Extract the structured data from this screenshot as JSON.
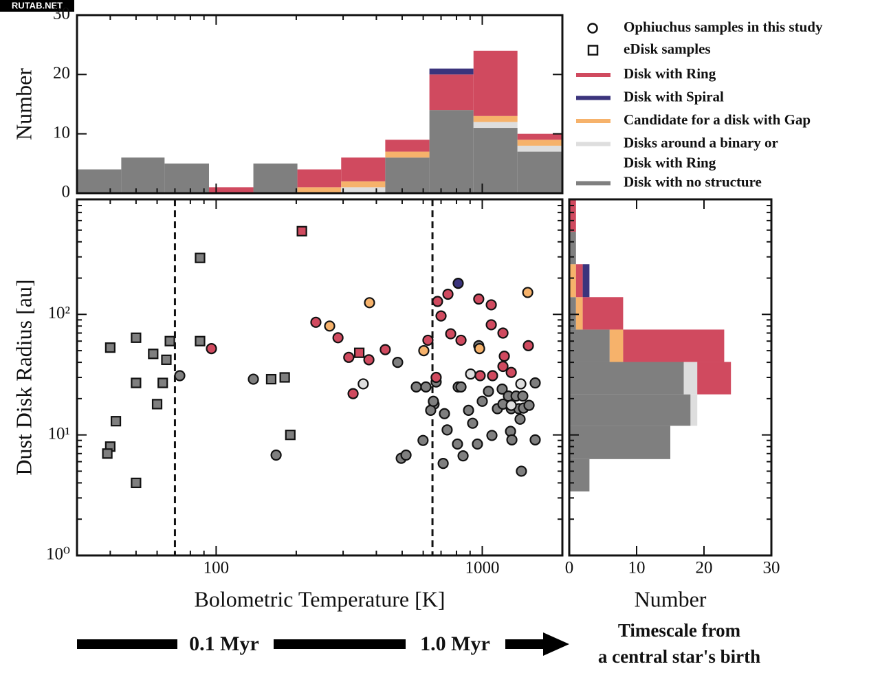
{
  "watermark": "RUTAB.NET",
  "chart_data": [
    {
      "type": "histogram",
      "orientation": "vertical",
      "ylabel": "Number",
      "xscale": "log",
      "xlim": [
        30,
        2000
      ],
      "xticks": [
        100,
        1000
      ],
      "xticks_minor": [
        40,
        50,
        60,
        70,
        80,
        90,
        200,
        300,
        400,
        500,
        600,
        700,
        800,
        900
      ],
      "ylim": [
        0,
        30
      ],
      "yticks": [
        0,
        10,
        20,
        30
      ],
      "bins": [
        30,
        44,
        64,
        94,
        138,
        202,
        295,
        432,
        633,
        927,
        1356,
        1985
      ],
      "series": [
        {
          "name": "Disk with no structure",
          "color": "#7f7f7f",
          "values": [
            4,
            6,
            5,
            0,
            5,
            0,
            0,
            6,
            14,
            11,
            7
          ]
        },
        {
          "name": "Disks around a binary or Disk with Ring",
          "color": "#dedede",
          "values": [
            0,
            0,
            0,
            0,
            0,
            0,
            1,
            0,
            0,
            1,
            1
          ]
        },
        {
          "name": "Candidate for a disk with Gap",
          "color": "#f6b26b",
          "values": [
            0,
            0,
            0,
            0,
            0,
            1,
            1,
            1,
            0,
            1,
            1
          ]
        },
        {
          "name": "Disk with Ring",
          "color": "#d04a5f",
          "values": [
            0,
            0,
            0,
            1,
            0,
            3,
            4,
            2,
            6,
            11,
            1
          ]
        },
        {
          "name": "Disk with Spiral",
          "color": "#3b347c",
          "values": [
            0,
            0,
            0,
            0,
            0,
            0,
            0,
            0,
            1,
            0,
            0
          ]
        }
      ]
    },
    {
      "type": "scatter",
      "xlabel": "Bolometric Temperature [K]",
      "ylabel": "Dust Disk Radius [au]",
      "xscale": "log",
      "yscale": "log",
      "xlim": [
        30,
        2000
      ],
      "ylim": [
        1,
        900
      ],
      "xticks": [
        100,
        1000
      ],
      "xticks_minor": [
        40,
        50,
        60,
        70,
        80,
        90,
        200,
        300,
        400,
        500,
        600,
        700,
        800,
        900
      ],
      "yticks": [
        {
          "value": 1,
          "label": "10⁰"
        },
        {
          "value": 10,
          "label": "10¹"
        },
        {
          "value": 100,
          "label": "10²"
        }
      ],
      "yticks_minor": [
        2,
        3,
        4,
        5,
        6,
        7,
        8,
        9,
        20,
        30,
        40,
        50,
        60,
        70,
        80,
        90,
        200,
        300,
        400,
        500,
        600,
        700,
        800
      ],
      "vlines": [
        70,
        650
      ],
      "legend": {
        "markers": [
          {
            "label": "Ophiuchus samples in this study",
            "marker": "circle"
          },
          {
            "label": "eDisk samples",
            "marker": "square"
          }
        ],
        "classes": [
          {
            "label": [
              "Disk with Ring"
            ],
            "color": "#d04a5f"
          },
          {
            "label": [
              "Disk with Spiral"
            ],
            "color": "#3b347c"
          },
          {
            "label": [
              "Candidate for a disk with Gap"
            ],
            "color": "#f6b26b"
          },
          {
            "label": [
              "Disks around a binary or",
              "Disk with Ring"
            ],
            "color": "#dedede"
          },
          {
            "label": [
              "Disk with no structure"
            ],
            "color": "#7f7f7f"
          }
        ]
      },
      "series": [
        {
          "marker": "square",
          "color": "#7f7f7f",
          "x": [
            40,
            50,
            58,
            67,
            65,
            50,
            63,
            60,
            42,
            40,
            39,
            50,
            87,
            87,
            161,
            181,
            190
          ],
          "values": [
            53,
            64,
            47,
            60,
            42,
            27,
            27,
            18,
            13,
            8,
            7,
            4,
            294,
            60,
            29,
            30,
            10
          ]
        },
        {
          "marker": "square",
          "color": "#d04a5f",
          "x": [
            210,
            345
          ],
          "values": [
            490,
            48
          ]
        },
        {
          "marker": "circle",
          "color": "#7f7f7f",
          "x": [
            73,
            138,
            168,
            481,
            496,
            517,
            565,
            614,
            671,
            659,
            640,
            655,
            599,
            721,
            738,
            713,
            812,
            832,
            807,
            847,
            888,
            920,
            959,
            1000,
            970,
            1055,
            1087,
            1140,
            1188,
            1196,
            1254,
            1277,
            1292,
            1285,
            1340,
            1387,
            1371,
            1429,
            1403,
            1499,
            1581,
            1581,
            1420
          ],
          "values": [
            31,
            29,
            6.8,
            40,
            6.4,
            6.8,
            25,
            25,
            27.5,
            18,
            16,
            19,
            9,
            15,
            11,
            5.8,
            25,
            25,
            8.4,
            6.7,
            16,
            12.5,
            8.4,
            19,
            55,
            23,
            9.9,
            16.5,
            24,
            18,
            21,
            10.7,
            9.1,
            16.5,
            21,
            13.5,
            16.5,
            16.7,
            5,
            17.6,
            27,
            9.1,
            21
          ]
        },
        {
          "marker": "circle",
          "color": "#dedede",
          "x": [
            357,
            904,
            1396,
            1285
          ],
          "values": [
            26.5,
            32,
            26.5,
            17.6
          ]
        },
        {
          "marker": "circle",
          "color": "#f6b26b",
          "x": [
            377,
            267,
            603,
            977,
            1482
          ],
          "values": [
            125,
            80,
            50,
            52,
            152
          ]
        },
        {
          "marker": "circle",
          "color": "#3b347c",
          "x": [
            812
          ],
          "values": [
            181
          ]
        },
        {
          "marker": "circle",
          "color": "#d04a5f",
          "x": [
            96,
            237,
            287,
            315,
            375,
            327,
            432,
            625,
            671,
            679,
            743,
            700,
            761,
            832,
            970,
            1081,
            1081,
            1196,
            1210,
            1196,
            1093,
            982,
            1285,
            1490
          ],
          "values": [
            52,
            86,
            64,
            44,
            42,
            22,
            51,
            61,
            30,
            128,
            147,
            97,
            69,
            61,
            134,
            120,
            82,
            70,
            45,
            37,
            31,
            31,
            33,
            55
          ]
        }
      ]
    },
    {
      "type": "histogram",
      "orientation": "horizontal",
      "xlabel": "Number",
      "xlim": [
        0,
        30
      ],
      "xticks": [
        0,
        10,
        20,
        30
      ],
      "yscale": "log",
      "ylim": [
        1,
        900
      ],
      "yticks": [
        1,
        10,
        100
      ],
      "yticks_minor": [
        2,
        3,
        4,
        5,
        6,
        7,
        8,
        9,
        20,
        30,
        40,
        50,
        60,
        70,
        80,
        90,
        200,
        300,
        400,
        500,
        600,
        700,
        800
      ],
      "bins": [
        3.4,
        6.3,
        11.9,
        21.7,
        40.3,
        74.8,
        139,
        261,
        485,
        900
      ],
      "series": [
        {
          "name": "Disk with no structure",
          "color": "#7f7f7f",
          "values": [
            3,
            15,
            18,
            17,
            6,
            1,
            0,
            1,
            0
          ]
        },
        {
          "name": "Disks around a binary or Disk with Ring",
          "color": "#dedede",
          "values": [
            0,
            0,
            1,
            2,
            0,
            0,
            0,
            0,
            0
          ]
        },
        {
          "name": "Candidate for a disk with Gap",
          "color": "#f6b26b",
          "values": [
            0,
            0,
            0,
            0,
            2,
            1,
            1,
            0,
            0
          ]
        },
        {
          "name": "Disk with Ring",
          "color": "#d04a5f",
          "values": [
            0,
            0,
            0,
            5,
            15,
            6,
            1,
            0,
            1
          ]
        },
        {
          "name": "Disk with Spiral",
          "color": "#3b347c",
          "values": [
            0,
            0,
            0,
            0,
            0,
            0,
            1,
            0,
            0
          ]
        }
      ]
    }
  ],
  "footer": {
    "labels": [
      "0.1 Myr",
      "1.0 Myr"
    ],
    "caption": [
      "Timescale from",
      "a central star's birth"
    ]
  }
}
